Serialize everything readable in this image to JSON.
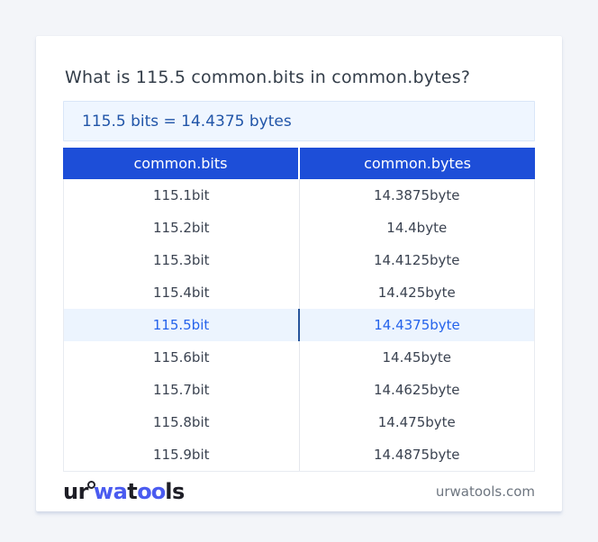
{
  "header": {
    "title": "What is 115.5 common.bits in common.bytes?"
  },
  "result": {
    "text": "115.5 bits = 14.4375 bytes"
  },
  "table": {
    "headers": [
      "common.bits",
      "common.bytes"
    ],
    "rows": [
      [
        "115.1bit",
        "14.3875byte"
      ],
      [
        "115.2bit",
        "14.4byte"
      ],
      [
        "115.3bit",
        "14.4125byte"
      ],
      [
        "115.4bit",
        "14.425byte"
      ],
      [
        "115.5bit",
        "14.4375byte"
      ],
      [
        "115.6bit",
        "14.45byte"
      ],
      [
        "115.7bit",
        "14.4625byte"
      ],
      [
        "115.8bit",
        "14.475byte"
      ],
      [
        "115.9bit",
        "14.4875byte"
      ]
    ],
    "highlighted_row_index": 4
  },
  "footer": {
    "logo_part_ur": "ur",
    "logo_part_wa": "wa",
    "logo_part_t": "t",
    "logo_part_oo": "oo",
    "logo_part_ls": "ls",
    "domain": "urwatools.com"
  },
  "colors": {
    "page_background": "#f3f5f9",
    "header_row_blue": "#1d4ed8",
    "result_box_background": "#eff6ff",
    "result_text_blue": "#2155a8",
    "highlight_row_background": "#ecf4fe",
    "highlight_text_blue": "#2563eb",
    "highlight_divider_blue": "#27549b",
    "logo_blue": "#4a5bf0",
    "body_text": "#3b4351"
  }
}
